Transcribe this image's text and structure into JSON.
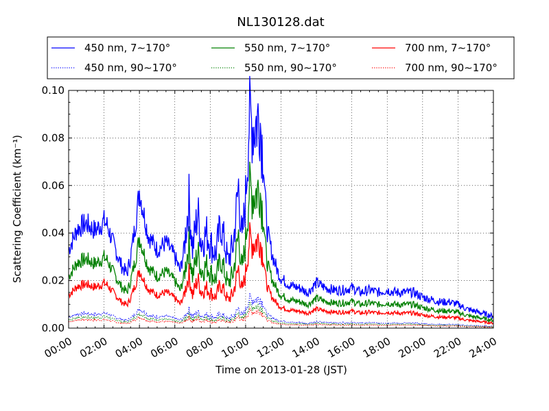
{
  "chart_data": {
    "type": "line",
    "title": "NL130128.dat",
    "xlabel": "Time on 2013-01-28 (JST)",
    "ylabel": "Scattering Coefficient (km⁻¹)",
    "xlim_hours": [
      0,
      24
    ],
    "ylim": [
      0,
      0.1
    ],
    "x_ticks": [
      "00:00",
      "02:00",
      "04:00",
      "06:00",
      "08:00",
      "10:00",
      "12:00",
      "14:00",
      "16:00",
      "18:00",
      "20:00",
      "22:00",
      "24:00"
    ],
    "y_ticks": [
      "0.00",
      "0.02",
      "0.04",
      "0.06",
      "0.08",
      "0.10"
    ],
    "grid": true,
    "legend_placement": "top",
    "base_profile_hours": [
      0,
      0.5,
      1,
      1.5,
      2,
      2.2,
      2.5,
      3,
      3.3,
      3.5,
      3.8,
      4,
      4.2,
      4.5,
      5,
      5.5,
      6,
      6.3,
      6.5,
      6.8,
      7,
      7.3,
      7.5,
      7.8,
      8,
      8.3,
      8.6,
      9,
      9.3,
      9.6,
      9.8,
      10,
      10.2,
      10.5,
      10.8,
      11,
      11.2,
      11.5,
      11.8,
      12,
      12.5,
      13,
      13.5,
      14,
      14.5,
      15,
      15.5,
      16,
      16.5,
      17,
      17.5,
      18,
      18.5,
      19,
      19.5,
      20,
      20.5,
      21,
      21.5,
      22,
      22.5,
      23,
      23.5,
      24
    ],
    "base_profile_values": [
      0.033,
      0.042,
      0.044,
      0.041,
      0.045,
      0.043,
      0.036,
      0.026,
      0.023,
      0.03,
      0.045,
      0.058,
      0.05,
      0.039,
      0.033,
      0.036,
      0.03,
      0.024,
      0.032,
      0.054,
      0.033,
      0.049,
      0.036,
      0.04,
      0.036,
      0.031,
      0.044,
      0.028,
      0.035,
      0.06,
      0.036,
      0.055,
      0.088,
      0.085,
      0.09,
      0.071,
      0.042,
      0.031,
      0.024,
      0.021,
      0.018,
      0.017,
      0.015,
      0.019,
      0.017,
      0.016,
      0.016,
      0.017,
      0.015,
      0.016,
      0.015,
      0.016,
      0.015,
      0.015,
      0.015,
      0.013,
      0.012,
      0.011,
      0.011,
      0.01,
      0.008,
      0.007,
      0.006,
      0.005
    ],
    "series": [
      {
        "name": "450 nm, 7∼170°",
        "color": "#0000ff",
        "style": "solid",
        "scale": 1.0
      },
      {
        "name": "550 nm, 7∼170°",
        "color": "#008000",
        "style": "solid",
        "scale": 0.66
      },
      {
        "name": "700 nm, 7∼170°",
        "color": "#ff0000",
        "style": "solid",
        "scale": 0.42
      },
      {
        "name": "450 nm, 90∼170°",
        "color": "#0000ff",
        "style": "dotted",
        "scale": 0.14
      },
      {
        "name": "550 nm, 90∼170°",
        "color": "#008000",
        "style": "dotted",
        "scale": 0.105
      },
      {
        "name": "700 nm, 90∼170°",
        "color": "#ff0000",
        "style": "dotted",
        "scale": 0.08
      }
    ]
  }
}
